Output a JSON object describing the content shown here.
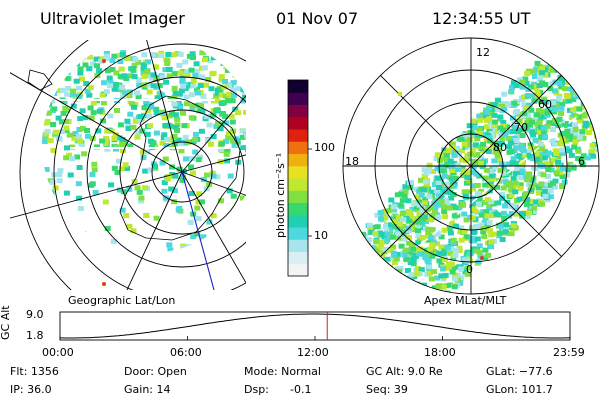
{
  "header": {
    "instrument": "Ultraviolet Imager",
    "date": "01 Nov 07",
    "time": "12:34:55 UT"
  },
  "left_panel": {
    "label": "Geographic Lat/Lon"
  },
  "right_panel": {
    "label": "Apex MLat/MLT",
    "mlt_labels": [
      "12",
      "18",
      "6",
      "0"
    ],
    "mlat_labels": [
      "60",
      "70",
      "80"
    ]
  },
  "colorbar": {
    "axis_label": "photon cm⁻²s⁻¹",
    "tick_labels": [
      "100",
      "10"
    ],
    "colors": [
      "#f4f4f4",
      "#d8f0f4",
      "#a8e4ec",
      "#4cd8dc",
      "#20d0b0",
      "#38d870",
      "#80e040",
      "#c0e830",
      "#e8e020",
      "#f0b010",
      "#f07010",
      "#e02010",
      "#b00020",
      "#800040",
      "#400050",
      "#100030"
    ]
  },
  "timeline": {
    "y_axis_label": "GC Alt",
    "y_ticks": [
      "9.0",
      "1.8"
    ],
    "x_ticks": [
      "00:00",
      "06:00",
      "12:00",
      "18:00",
      "23:59"
    ],
    "current_time_fraction": 0.524
  },
  "status": {
    "flt": "Flt: 1356",
    "ip": "IP: 36.0",
    "door": "Door: Open",
    "gain": "Gain: 14",
    "mode": "Mode: Normal",
    "dsp_label": "Dsp:",
    "dsp_value": "-0.1",
    "gc_alt": "GC Alt: 9.0 Re",
    "seq": "Seq: 39",
    "glat": "GLat: −77.6",
    "glon": "GLon: 101.7"
  }
}
